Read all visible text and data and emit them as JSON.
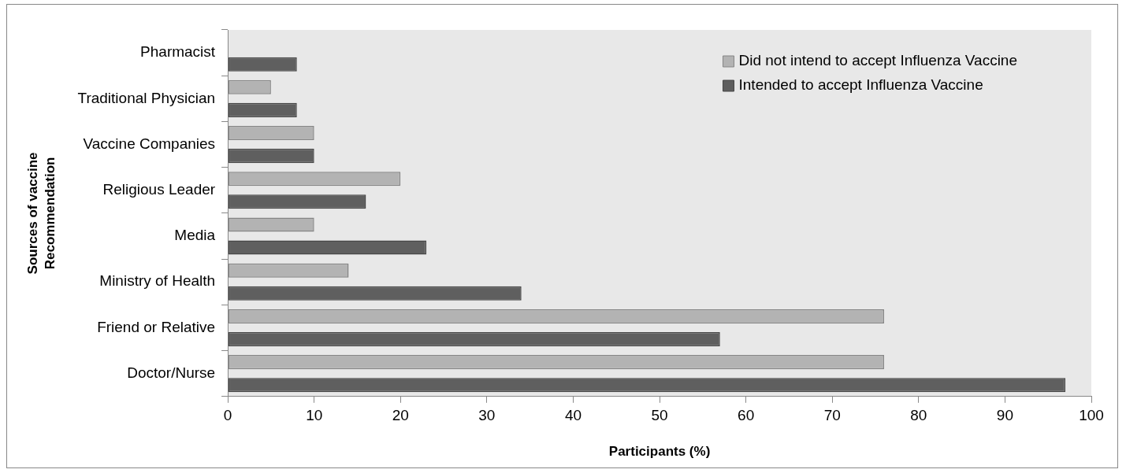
{
  "chart_data": {
    "type": "bar",
    "orientation": "horizontal",
    "xlabel": "Participants (%)",
    "ylabel": "Sources of vaccine\nRecommendation",
    "categories": [
      "Pharmacist",
      "Traditional Physician",
      "Vaccine Companies",
      "Religious Leader",
      "Media",
      "Ministry of Health",
      "Friend or Relative",
      "Doctor/Nurse"
    ],
    "series": [
      {
        "name": "Did not intend to accept Influenza Vaccine",
        "color": "#b3b3b3",
        "values": [
          0,
          5,
          10,
          20,
          10,
          14,
          76,
          76
        ]
      },
      {
        "name": "Intended to accept Influenza Vaccine",
        "color": "#5f5f5f",
        "values": [
          8,
          8,
          10,
          16,
          23,
          34,
          57,
          97
        ]
      }
    ],
    "xlim": [
      0,
      100
    ],
    "xticks": [
      0,
      10,
      20,
      30,
      40,
      50,
      60,
      70,
      80,
      90,
      100
    ],
    "grid": false,
    "legend": "top right"
  }
}
